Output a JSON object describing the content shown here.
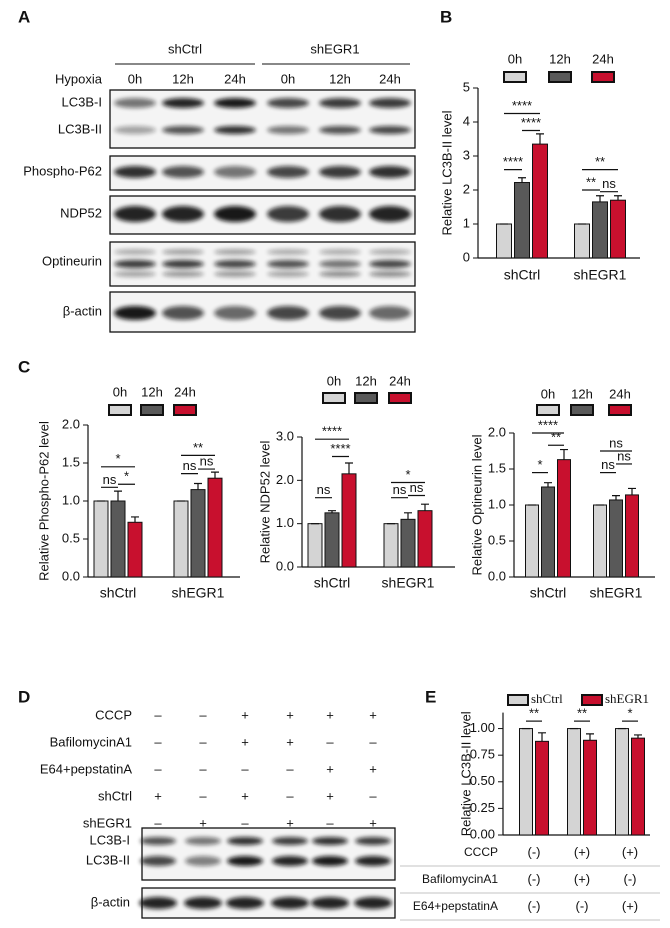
{
  "panel_labels": [
    "A",
    "B",
    "C",
    "D",
    "E"
  ],
  "blot_a": {
    "groups": [
      "shCtrl",
      "shEGR1"
    ],
    "condition": "Hypoxia",
    "timepoints": [
      "0h",
      "12h",
      "24h",
      "0h",
      "12h",
      "24h"
    ],
    "bands": [
      "LC3B-I",
      "LC3B-II",
      "Phospho-P62",
      "NDP52",
      "Optineurin",
      "β-actin"
    ]
  },
  "blot_d": {
    "treatments": [
      {
        "label": "CCCP",
        "signs": [
          "–",
          "–",
          "+",
          "+",
          "+",
          "+"
        ]
      },
      {
        "label": "BafilomycinA1",
        "signs": [
          "–",
          "–",
          "+",
          "+",
          "–",
          "–"
        ]
      },
      {
        "label": "E64+pepstatinA",
        "signs": [
          "–",
          "–",
          "–",
          "–",
          "+",
          "+"
        ]
      },
      {
        "label": "shCtrl",
        "signs": [
          "+",
          "–",
          "+",
          "–",
          "+",
          "–"
        ]
      },
      {
        "label": "shEGR1",
        "signs": [
          "–",
          "+",
          "–",
          "+",
          "–",
          "+"
        ]
      }
    ],
    "bands": [
      "LC3B-I",
      "LC3B-II",
      "β-actin"
    ]
  },
  "chart_data": [
    {
      "type": "bar",
      "y_label": "Relative LC3B-II level",
      "categories": [
        "shCtrl",
        "shEGR1"
      ],
      "series": [
        {
          "name": "0h",
          "color": "#d4d4d4",
          "values": [
            1,
            1
          ],
          "errors": [
            0,
            0
          ]
        },
        {
          "name": "12h",
          "color": "#595959",
          "values": [
            2.22,
            1.65
          ],
          "errors": [
            0.14,
            0.18
          ]
        },
        {
          "name": "24h",
          "color": "#c8102e",
          "values": [
            3.35,
            1.7
          ],
          "errors": [
            0.3,
            0.13
          ]
        }
      ],
      "ylim": [
        0,
        5
      ],
      "yticks": [
        0,
        1,
        2,
        3,
        4,
        5
      ],
      "annotations": [
        "****",
        "****",
        "****",
        "**",
        "**",
        "ns"
      ]
    },
    {
      "type": "bar",
      "y_label": "Relative Phospho-P62 level",
      "categories": [
        "shCtrl",
        "shEGR1"
      ],
      "series": [
        {
          "name": "0h",
          "color": "#d4d4d4",
          "values": [
            1,
            1
          ],
          "errors": [
            0,
            0
          ]
        },
        {
          "name": "12h",
          "color": "#595959",
          "values": [
            1.0,
            1.15
          ],
          "errors": [
            0.13,
            0.08
          ]
        },
        {
          "name": "24h",
          "color": "#c8102e",
          "values": [
            0.72,
            1.3
          ],
          "errors": [
            0.07,
            0.08
          ]
        }
      ],
      "ylim": [
        0,
        2
      ],
      "yticks": [
        {
          "value": 0,
          "label": "0.0"
        },
        0.5,
        {
          "value": 1,
          "label": "1.0"
        },
        1.5,
        {
          "value": 2,
          "label": "2.0"
        }
      ],
      "annotations": [
        "*",
        "ns",
        "*",
        "**",
        "ns",
        "ns"
      ]
    },
    {
      "type": "bar",
      "y_label": "Relative NDP52 level",
      "categories": [
        "shCtrl",
        "shEGR1"
      ],
      "series": [
        {
          "name": "0h",
          "color": "#d4d4d4",
          "values": [
            1,
            1
          ],
          "errors": [
            0,
            0
          ]
        },
        {
          "name": "12h",
          "color": "#595959",
          "values": [
            1.25,
            1.1
          ],
          "errors": [
            0.05,
            0.15
          ]
        },
        {
          "name": "24h",
          "color": "#c8102e",
          "values": [
            2.15,
            1.3
          ],
          "errors": [
            0.25,
            0.15
          ]
        }
      ],
      "ylim": [
        0,
        3
      ],
      "yticks": [
        {
          "value": 0,
          "label": "0.0"
        },
        {
          "value": 1,
          "label": "1.0"
        },
        {
          "value": 2,
          "label": "2.0"
        },
        {
          "value": 3,
          "label": "3.0"
        }
      ],
      "annotations": [
        "****",
        "ns",
        "****",
        "*",
        "ns",
        "ns"
      ]
    },
    {
      "type": "bar",
      "y_label": "Relative Optineurin level",
      "categories": [
        "shCtrl",
        "shEGR1"
      ],
      "series": [
        {
          "name": "0h",
          "color": "#d4d4d4",
          "values": [
            1,
            1
          ],
          "errors": [
            0,
            0
          ]
        },
        {
          "name": "12h",
          "color": "#595959",
          "values": [
            1.25,
            1.07
          ],
          "errors": [
            0.06,
            0.06
          ]
        },
        {
          "name": "24h",
          "color": "#c8102e",
          "values": [
            1.63,
            1.14
          ],
          "errors": [
            0.14,
            0.09
          ]
        }
      ],
      "ylim": [
        0,
        2
      ],
      "yticks": [
        {
          "value": 0,
          "label": "0.0"
        },
        0.5,
        {
          "value": 1,
          "label": "1.0"
        },
        1.5,
        {
          "value": 2,
          "label": "2.0"
        }
      ],
      "annotations": [
        "****",
        "*",
        "**",
        "ns",
        "ns",
        "ns"
      ]
    },
    {
      "type": "bar",
      "y_label": "Relative LC3B-II level",
      "categories": [
        null,
        null,
        null
      ],
      "series": [
        {
          "name": "shCtrl",
          "color": "#d4d4d4",
          "values": [
            1,
            1,
            1
          ],
          "errors": [
            0,
            0,
            0
          ]
        },
        {
          "name": "shEGR1",
          "color": "#c8102e",
          "values": [
            0.88,
            0.89,
            0.91
          ],
          "errors": [
            0.08,
            0.06,
            0.03
          ]
        }
      ],
      "ylim": [
        0,
        1.15
      ],
      "yticks": [
        {
          "value": 0,
          "label": "0.00"
        },
        0.25,
        {
          "value": 0.5,
          "label": "0.50"
        },
        0.75,
        {
          "value": 1,
          "label": "1.00"
        }
      ],
      "annotations": [
        "**",
        "**",
        "*"
      ],
      "conditions": [
        {
          "label": "CCCP",
          "values": [
            "(-)",
            "(+)",
            "(+)"
          ]
        },
        {
          "label": "BafilomycinA1",
          "values": [
            "(-)",
            "(+)",
            "(-)"
          ]
        },
        {
          "label": "E64+pepstatinA",
          "values": [
            "(-)",
            "(-)",
            "(+)"
          ]
        }
      ]
    }
  ]
}
